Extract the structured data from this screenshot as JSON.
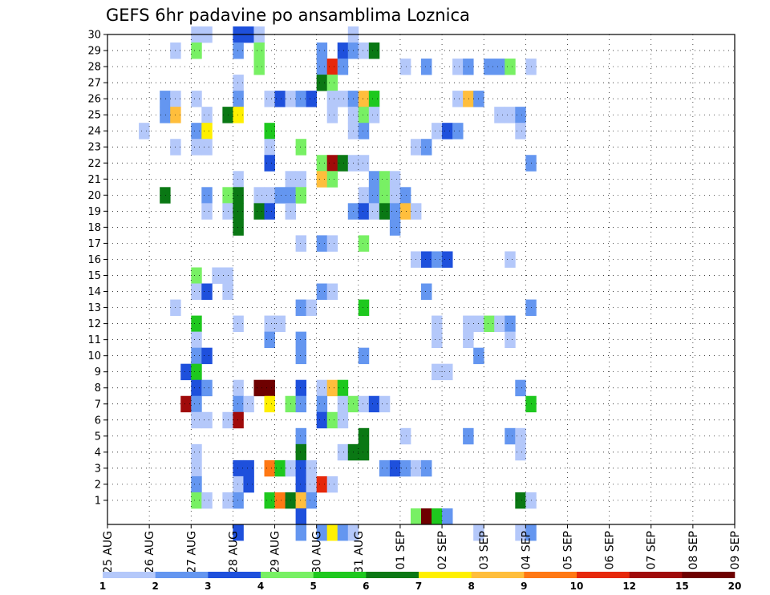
{
  "chart_data": {
    "type": "heatmap",
    "title": "GEFS 6hr padavine po ansamblima Loznica",
    "y_categories": [
      "1",
      "2",
      "3",
      "4",
      "5",
      "6",
      "7",
      "8",
      "9",
      "10",
      "11",
      "12",
      "13",
      "14",
      "15",
      "16",
      "17",
      "18",
      "19",
      "20",
      "21",
      "22",
      "23",
      "24",
      "25",
      "26",
      "27",
      "28",
      "29",
      "30"
    ],
    "x_tick_labels": [
      "25 AUG",
      "26 AUG",
      "27 AUG",
      "28 AUG",
      "29 AUG",
      "30 AUG",
      "31 AUG",
      "01 SEP",
      "02 SEP",
      "03 SEP",
      "04 SEP",
      "05 SEP",
      "06 SEP",
      "07 SEP",
      "08 SEP",
      "09 SEP"
    ],
    "time_steps_per_day": 4,
    "colorbar": {
      "tick_labels": [
        "1",
        "2",
        "3",
        "4",
        "5",
        "6",
        "7",
        "8",
        "9",
        "10",
        "12",
        "15",
        "20"
      ],
      "colors": [
        "#b4c8fa",
        "#6496f0",
        "#1e50dc",
        "#78f064",
        "#1ec81e",
        "#0a7814",
        "#fff000",
        "#ffbe3c",
        "#ff7814",
        "#e6280a",
        "#a00a0a",
        "#6e0000"
      ]
    },
    "grid": "dotted",
    "cells": [
      [
        30,
        8,
        0
      ],
      [
        30,
        9,
        0
      ],
      [
        30,
        12,
        2
      ],
      [
        30,
        13,
        2
      ],
      [
        30,
        14,
        0
      ],
      [
        30,
        23,
        0
      ],
      [
        29,
        6,
        0
      ],
      [
        29,
        8,
        3
      ],
      [
        29,
        12,
        1
      ],
      [
        29,
        14,
        3
      ],
      [
        29,
        20,
        1
      ],
      [
        29,
        22,
        2
      ],
      [
        29,
        23,
        1
      ],
      [
        29,
        24,
        0
      ],
      [
        29,
        25,
        5
      ],
      [
        28,
        14,
        3
      ],
      [
        28,
        20,
        1
      ],
      [
        28,
        21,
        9
      ],
      [
        28,
        22,
        1
      ],
      [
        28,
        28,
        0
      ],
      [
        28,
        30,
        1
      ],
      [
        28,
        33,
        0
      ],
      [
        28,
        34,
        1
      ],
      [
        28,
        36,
        1
      ],
      [
        28,
        37,
        1
      ],
      [
        28,
        38,
        3
      ],
      [
        28,
        40,
        0
      ],
      [
        27,
        12,
        0
      ],
      [
        27,
        20,
        5
      ],
      [
        27,
        21,
        3
      ],
      [
        26,
        5,
        1
      ],
      [
        26,
        6,
        0
      ],
      [
        26,
        8,
        0
      ],
      [
        26,
        12,
        1
      ],
      [
        26,
        15,
        0
      ],
      [
        26,
        16,
        2
      ],
      [
        26,
        17,
        0
      ],
      [
        26,
        18,
        1
      ],
      [
        26,
        19,
        2
      ],
      [
        26,
        21,
        0
      ],
      [
        26,
        22,
        0
      ],
      [
        26,
        23,
        1
      ],
      [
        26,
        24,
        7
      ],
      [
        26,
        25,
        4
      ],
      [
        26,
        33,
        0
      ],
      [
        26,
        34,
        7
      ],
      [
        26,
        35,
        1
      ],
      [
        25,
        5,
        1
      ],
      [
        25,
        6,
        7
      ],
      [
        25,
        9,
        0
      ],
      [
        25,
        11,
        5
      ],
      [
        25,
        12,
        6
      ],
      [
        25,
        21,
        0
      ],
      [
        25,
        23,
        0
      ],
      [
        25,
        24,
        3
      ],
      [
        25,
        25,
        0
      ],
      [
        25,
        37,
        0
      ],
      [
        25,
        38,
        0
      ],
      [
        25,
        39,
        1
      ],
      [
        24,
        3,
        0
      ],
      [
        24,
        8,
        1
      ],
      [
        24,
        9,
        6
      ],
      [
        24,
        15,
        4
      ],
      [
        24,
        23,
        0
      ],
      [
        24,
        24,
        1
      ],
      [
        24,
        31,
        0
      ],
      [
        24,
        32,
        2
      ],
      [
        24,
        33,
        1
      ],
      [
        24,
        39,
        0
      ],
      [
        23,
        6,
        0
      ],
      [
        23,
        8,
        0
      ],
      [
        23,
        9,
        0
      ],
      [
        23,
        15,
        0
      ],
      [
        23,
        18,
        3
      ],
      [
        23,
        29,
        0
      ],
      [
        23,
        30,
        1
      ],
      [
        22,
        15,
        2
      ],
      [
        22,
        20,
        3
      ],
      [
        22,
        21,
        10
      ],
      [
        22,
        22,
        5
      ],
      [
        22,
        23,
        0
      ],
      [
        22,
        24,
        0
      ],
      [
        22,
        40,
        1
      ],
      [
        21,
        12,
        0
      ],
      [
        21,
        17,
        0
      ],
      [
        21,
        18,
        0
      ],
      [
        21,
        20,
        7
      ],
      [
        21,
        21,
        3
      ],
      [
        21,
        25,
        1
      ],
      [
        21,
        26,
        3
      ],
      [
        21,
        27,
        0
      ],
      [
        20,
        5,
        5
      ],
      [
        20,
        9,
        1
      ],
      [
        20,
        11,
        3
      ],
      [
        20,
        12,
        5
      ],
      [
        20,
        14,
        0
      ],
      [
        20,
        15,
        0
      ],
      [
        20,
        16,
        1
      ],
      [
        20,
        17,
        1
      ],
      [
        20,
        18,
        3
      ],
      [
        20,
        24,
        0
      ],
      [
        20,
        25,
        1
      ],
      [
        20,
        26,
        3
      ],
      [
        20,
        27,
        0
      ],
      [
        20,
        28,
        1
      ],
      [
        19,
        9,
        0
      ],
      [
        19,
        11,
        0
      ],
      [
        19,
        12,
        5
      ],
      [
        19,
        14,
        5
      ],
      [
        19,
        15,
        2
      ],
      [
        19,
        17,
        0
      ],
      [
        19,
        23,
        1
      ],
      [
        19,
        24,
        2
      ],
      [
        19,
        25,
        0
      ],
      [
        19,
        26,
        5
      ],
      [
        19,
        27,
        1
      ],
      [
        19,
        28,
        7
      ],
      [
        19,
        29,
        0
      ],
      [
        18,
        12,
        5
      ],
      [
        18,
        27,
        1
      ],
      [
        17,
        18,
        0
      ],
      [
        17,
        20,
        1
      ],
      [
        17,
        21,
        0
      ],
      [
        17,
        24,
        3
      ],
      [
        16,
        29,
        0
      ],
      [
        16,
        30,
        2
      ],
      [
        16,
        31,
        1
      ],
      [
        16,
        32,
        2
      ],
      [
        16,
        38,
        0
      ],
      [
        15,
        8,
        3
      ],
      [
        15,
        10,
        0
      ],
      [
        15,
        11,
        0
      ],
      [
        14,
        8,
        0
      ],
      [
        14,
        9,
        2
      ],
      [
        14,
        11,
        0
      ],
      [
        14,
        20,
        1
      ],
      [
        14,
        21,
        0
      ],
      [
        14,
        30,
        1
      ],
      [
        13,
        6,
        0
      ],
      [
        13,
        18,
        1
      ],
      [
        13,
        19,
        0
      ],
      [
        13,
        24,
        4
      ],
      [
        13,
        40,
        1
      ],
      [
        12,
        8,
        4
      ],
      [
        12,
        12,
        0
      ],
      [
        12,
        15,
        0
      ],
      [
        12,
        16,
        0
      ],
      [
        12,
        31,
        0
      ],
      [
        12,
        34,
        0
      ],
      [
        12,
        35,
        0
      ],
      [
        12,
        36,
        3
      ],
      [
        12,
        37,
        0
      ],
      [
        12,
        38,
        1
      ],
      [
        11,
        8,
        0
      ],
      [
        11,
        15,
        1
      ],
      [
        11,
        18,
        1
      ],
      [
        11,
        31,
        0
      ],
      [
        11,
        34,
        0
      ],
      [
        11,
        38,
        0
      ],
      [
        10,
        8,
        1
      ],
      [
        10,
        9,
        2
      ],
      [
        10,
        18,
        1
      ],
      [
        10,
        24,
        1
      ],
      [
        10,
        35,
        1
      ],
      [
        9,
        7,
        2
      ],
      [
        9,
        8,
        4
      ],
      [
        9,
        31,
        0
      ],
      [
        9,
        32,
        0
      ],
      [
        8,
        8,
        2
      ],
      [
        8,
        9,
        1
      ],
      [
        8,
        12,
        0
      ],
      [
        8,
        14,
        11
      ],
      [
        8,
        15,
        11
      ],
      [
        8,
        18,
        2
      ],
      [
        8,
        20,
        0
      ],
      [
        8,
        21,
        7
      ],
      [
        8,
        22,
        4
      ],
      [
        8,
        39,
        1
      ],
      [
        7,
        7,
        10
      ],
      [
        7,
        8,
        1
      ],
      [
        7,
        12,
        1
      ],
      [
        7,
        13,
        0
      ],
      [
        7,
        15,
        6
      ],
      [
        7,
        17,
        3
      ],
      [
        7,
        18,
        1
      ],
      [
        7,
        20,
        1
      ],
      [
        7,
        22,
        0
      ],
      [
        7,
        23,
        3
      ],
      [
        7,
        24,
        0
      ],
      [
        7,
        25,
        2
      ],
      [
        7,
        26,
        0
      ],
      [
        7,
        40,
        4
      ],
      [
        6,
        8,
        0
      ],
      [
        6,
        9,
        0
      ],
      [
        6,
        11,
        0
      ],
      [
        6,
        12,
        10
      ],
      [
        6,
        20,
        2
      ],
      [
        6,
        21,
        3
      ],
      [
        6,
        22,
        0
      ],
      [
        5,
        18,
        1
      ],
      [
        5,
        24,
        5
      ],
      [
        5,
        28,
        0
      ],
      [
        5,
        34,
        1
      ],
      [
        5,
        38,
        1
      ],
      [
        5,
        39,
        0
      ],
      [
        4,
        8,
        0
      ],
      [
        4,
        18,
        5
      ],
      [
        4,
        22,
        0
      ],
      [
        4,
        23,
        5
      ],
      [
        4,
        24,
        5
      ],
      [
        4,
        39,
        0
      ],
      [
        3,
        8,
        0
      ],
      [
        3,
        12,
        2
      ],
      [
        3,
        13,
        2
      ],
      [
        3,
        15,
        8
      ],
      [
        3,
        16,
        4
      ],
      [
        3,
        17,
        0
      ],
      [
        3,
        18,
        2
      ],
      [
        3,
        19,
        0
      ],
      [
        3,
        26,
        1
      ],
      [
        3,
        27,
        2
      ],
      [
        3,
        28,
        1
      ],
      [
        3,
        29,
        0
      ],
      [
        3,
        30,
        1
      ],
      [
        2,
        8,
        1
      ],
      [
        2,
        12,
        0
      ],
      [
        2,
        13,
        2
      ],
      [
        2,
        18,
        2
      ],
      [
        2,
        19,
        0
      ],
      [
        2,
        20,
        9
      ],
      [
        2,
        21,
        0
      ],
      [
        1,
        8,
        3
      ],
      [
        1,
        9,
        0
      ],
      [
        1,
        11,
        0
      ],
      [
        1,
        12,
        1
      ],
      [
        1,
        15,
        4
      ],
      [
        1,
        16,
        8
      ],
      [
        1,
        17,
        5
      ],
      [
        1,
        18,
        7
      ],
      [
        1,
        19,
        1
      ],
      [
        1,
        39,
        5
      ],
      [
        1,
        40,
        0
      ],
      [
        0,
        18,
        2
      ],
      [
        0,
        29,
        3
      ],
      [
        0,
        30,
        11
      ],
      [
        0,
        31,
        4
      ],
      [
        0,
        32,
        1
      ],
      [
        -1,
        12,
        2
      ],
      [
        -1,
        18,
        1
      ],
      [
        -1,
        20,
        1
      ],
      [
        -1,
        21,
        6
      ],
      [
        -1,
        22,
        1
      ],
      [
        -1,
        23,
        0
      ],
      [
        -1,
        35,
        0
      ],
      [
        -1,
        39,
        0
      ],
      [
        -1,
        40,
        1
      ]
    ]
  }
}
